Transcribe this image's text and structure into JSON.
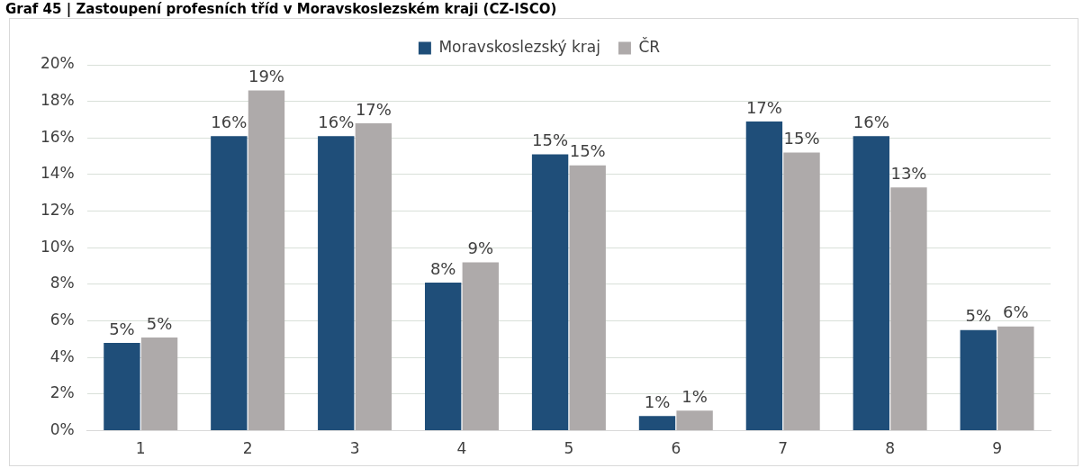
{
  "chart_data": {
    "type": "bar",
    "title": "Graf 45 | Zastoupení profesních tříd v Moravskoslezském kraji (CZ-ISCO)",
    "categories": [
      "1",
      "2",
      "3",
      "4",
      "5",
      "6",
      "7",
      "8",
      "9"
    ],
    "series": [
      {
        "name": "Moravskoslezský kraj",
        "color": "#1f4e79",
        "values": [
          4.8,
          16.1,
          16.1,
          8.1,
          15.1,
          0.8,
          16.9,
          16.1,
          5.5
        ],
        "value_labels": [
          "5%",
          "16%",
          "16%",
          "8%",
          "15%",
          "1%",
          "17%",
          "16%",
          "5%"
        ]
      },
      {
        "name": "ČR",
        "color": "#aeaaaa",
        "values": [
          5.1,
          18.6,
          16.8,
          9.2,
          14.5,
          1.1,
          15.2,
          13.3,
          5.7
        ],
        "value_labels": [
          "5%",
          "19%",
          "17%",
          "9%",
          "15%",
          "1%",
          "15%",
          "13%",
          "6%"
        ]
      }
    ],
    "ylim": [
      0,
      20
    ],
    "yticks": [
      {
        "value": 0,
        "label": "0%"
      },
      {
        "value": 2,
        "label": "2%"
      },
      {
        "value": 4,
        "label": "4%"
      },
      {
        "value": 6,
        "label": "6%"
      },
      {
        "value": 8,
        "label": "8%"
      },
      {
        "value": 10,
        "label": "10%"
      },
      {
        "value": 12,
        "label": "12%"
      },
      {
        "value": 14,
        "label": "14%"
      },
      {
        "value": 16,
        "label": "16%"
      },
      {
        "value": 18,
        "label": "18%"
      },
      {
        "value": 20,
        "label": "20%"
      }
    ],
    "grid": "y",
    "legend": "top"
  }
}
